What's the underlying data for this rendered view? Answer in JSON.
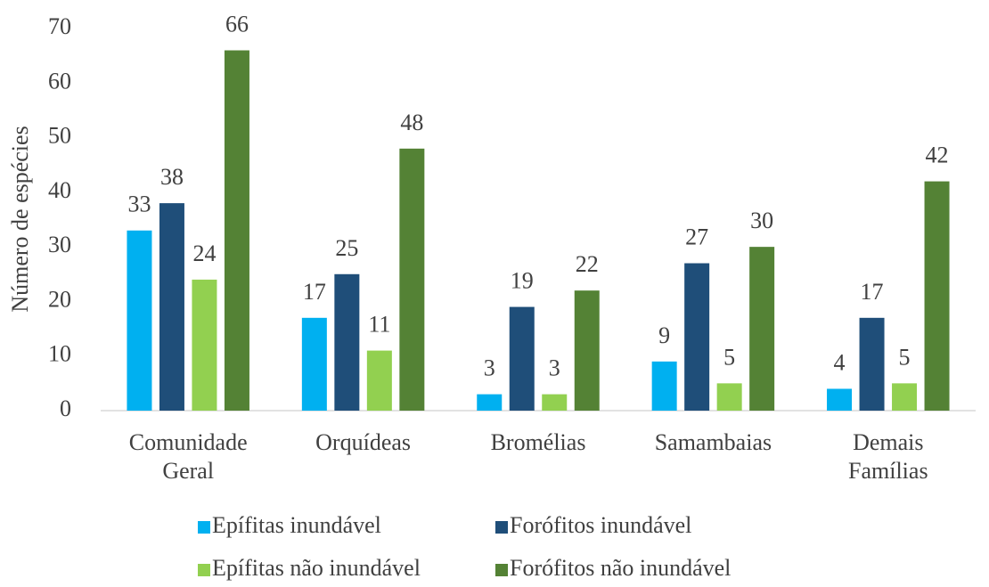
{
  "chart_data": {
    "type": "bar",
    "y_label": "Número de espécies",
    "categories": [
      "Comunidade Geral",
      "Orquídeas",
      "Bromélias",
      "Samambaias",
      "Demais Famílias"
    ],
    "series": [
      {
        "name": "Epífitas inundável",
        "color": "#00b0f0",
        "values": [
          33,
          17,
          3,
          9,
          4
        ]
      },
      {
        "name": "Forófitos inundável",
        "color": "#1f4e79",
        "values": [
          38,
          25,
          19,
          27,
          17
        ]
      },
      {
        "name": "Epífitas não inundável",
        "color": "#92d050",
        "values": [
          24,
          11,
          3,
          5,
          5
        ]
      },
      {
        "name": "Forófitos não inundável",
        "color": "#548235",
        "values": [
          66,
          48,
          22,
          30,
          42
        ]
      }
    ],
    "ylim": [
      0,
      70
    ],
    "yticks": [
      0,
      10,
      20,
      30,
      40,
      50,
      60,
      70
    ],
    "grid": false,
    "legend": "bottom"
  }
}
